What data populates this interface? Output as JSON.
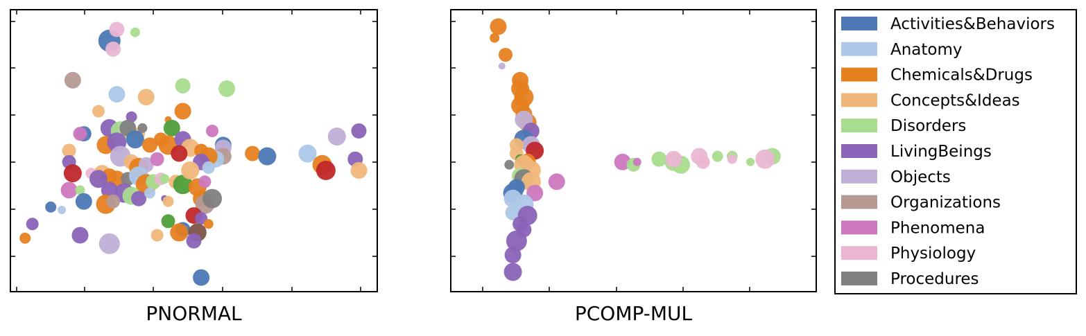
{
  "legend": {
    "placement": "right",
    "entries": [
      {
        "name": "Activities&Behaviors",
        "color": "#4c78b4"
      },
      {
        "name": "Anatomy",
        "color": "#aec7e8"
      },
      {
        "name": "Chemicals&Drugs",
        "color": "#e6801f"
      },
      {
        "name": "Concepts&Ideas",
        "color": "#f0b77a"
      },
      {
        "name": "Disorders",
        "color": "#a8dc8e"
      },
      {
        "name": "LivingBeings",
        "color": "#8a63b8"
      },
      {
        "name": "Objects",
        "color": "#c0afd6"
      },
      {
        "name": "Organizations",
        "color": "#b69a92"
      },
      {
        "name": "Phenomena",
        "color": "#cc78be"
      },
      {
        "name": "Physiology",
        "color": "#eab6d3"
      },
      {
        "name": "Procedures",
        "color": "#808080"
      }
    ]
  },
  "chart_data": [
    {
      "type": "scatter",
      "title": "PNORMAL",
      "xlabel": "",
      "ylabel": "",
      "xlim": [
        0,
        100
      ],
      "ylim": [
        0,
        100
      ],
      "grid": false,
      "tick_labels": "none",
      "extra_colors": {
        "green": "#4f9e3a",
        "red": "#c0282a",
        "brown": "#7d5449"
      },
      "points": [
        {
          "x": 27,
          "y": 89,
          "s": 16,
          "c": "Activities&Behaviors"
        },
        {
          "x": 29,
          "y": 93,
          "s": 11,
          "c": "Physiology"
        },
        {
          "x": 28,
          "y": 86,
          "s": 11,
          "c": "Physiology"
        },
        {
          "x": 34,
          "y": 92,
          "s": 7,
          "c": "Disorders"
        },
        {
          "x": 17,
          "y": 75,
          "s": 12,
          "c": "Organizations"
        },
        {
          "x": 47,
          "y": 73,
          "s": 11,
          "c": "Disorders"
        },
        {
          "x": 59,
          "y": 72,
          "s": 12,
          "c": "Disorders"
        },
        {
          "x": 29,
          "y": 70,
          "s": 12,
          "c": "Anatomy"
        },
        {
          "x": 37,
          "y": 69,
          "s": 12,
          "c": "Concepts&Ideas"
        },
        {
          "x": 24,
          "y": 64,
          "s": 9,
          "c": "Concepts&Ideas"
        },
        {
          "x": 47,
          "y": 64,
          "s": 12,
          "c": "Chemicals&Drugs"
        },
        {
          "x": 43,
          "y": 61,
          "s": 5,
          "c": "Chemicals&Drugs"
        },
        {
          "x": 33,
          "y": 62,
          "s": 8,
          "c": "LivingBeings"
        },
        {
          "x": 44,
          "y": 58,
          "s": 12,
          "c": "green"
        },
        {
          "x": 55,
          "y": 57,
          "s": 9,
          "c": "Phenomena"
        },
        {
          "x": 20,
          "y": 56,
          "s": 11,
          "c": "Activities&Behaviors"
        },
        {
          "x": 19,
          "y": 56,
          "s": 10,
          "c": "Phenomena"
        },
        {
          "x": 27,
          "y": 58,
          "s": 13,
          "c": "LivingBeings"
        },
        {
          "x": 30,
          "y": 57,
          "s": 14,
          "c": "Disorders"
        },
        {
          "x": 35,
          "y": 56,
          "s": 9,
          "c": "Concepts&Ideas"
        },
        {
          "x": 36,
          "y": 58,
          "s": 7,
          "c": "Procedures"
        },
        {
          "x": 32,
          "y": 58,
          "s": 12,
          "c": "Procedures"
        },
        {
          "x": 34,
          "y": 54,
          "s": 13,
          "c": "Activities&Behaviors"
        },
        {
          "x": 26,
          "y": 52,
          "s": 13,
          "c": "Chemicals&Drugs"
        },
        {
          "x": 29,
          "y": 53,
          "s": 14,
          "c": "LivingBeings"
        },
        {
          "x": 38,
          "y": 52,
          "s": 11,
          "c": "Chemicals&Drugs"
        },
        {
          "x": 41,
          "y": 54,
          "s": 10,
          "c": "Chemicals&Drugs"
        },
        {
          "x": 43,
          "y": 52,
          "s": 14,
          "c": "Chemicals&Drugs"
        },
        {
          "x": 47,
          "y": 54,
          "s": 12,
          "c": "LivingBeings"
        },
        {
          "x": 49,
          "y": 51,
          "s": 13,
          "c": "Concepts&Ideas"
        },
        {
          "x": 46,
          "y": 49,
          "s": 12,
          "c": "red"
        },
        {
          "x": 52,
          "y": 50,
          "s": 10,
          "c": "Chemicals&Drugs"
        },
        {
          "x": 58,
          "y": 52,
          "s": 12,
          "c": "Activities&Behaviors"
        },
        {
          "x": 58,
          "y": 51,
          "s": 12,
          "c": "Objects"
        },
        {
          "x": 58,
          "y": 48,
          "s": 12,
          "c": "Organizations"
        },
        {
          "x": 56,
          "y": 47,
          "s": 12,
          "c": "Anatomy"
        },
        {
          "x": 54,
          "y": 48,
          "s": 13,
          "c": "Chemicals&Drugs"
        },
        {
          "x": 52,
          "y": 46,
          "s": 12,
          "c": "LivingBeings"
        },
        {
          "x": 54,
          "y": 44,
          "s": 9,
          "c": "Anatomy"
        },
        {
          "x": 16,
          "y": 50,
          "s": 10,
          "c": "Concepts&Ideas"
        },
        {
          "x": 16,
          "y": 46,
          "s": 10,
          "c": "LivingBeings"
        },
        {
          "x": 30,
          "y": 48,
          "s": 15,
          "c": "Objects"
        },
        {
          "x": 33,
          "y": 46,
          "s": 11,
          "c": "Concepts&Ideas"
        },
        {
          "x": 35,
          "y": 44,
          "s": 14,
          "c": "Chemicals&Drugs"
        },
        {
          "x": 37,
          "y": 45,
          "s": 11,
          "c": "Objects"
        },
        {
          "x": 40,
          "y": 47,
          "s": 10,
          "c": "Phenomena"
        },
        {
          "x": 17,
          "y": 42,
          "s": 13,
          "c": "red"
        },
        {
          "x": 22,
          "y": 42,
          "s": 8,
          "c": "Physiology"
        },
        {
          "x": 25,
          "y": 42,
          "s": 12,
          "c": "Concepts&Ideas"
        },
        {
          "x": 27,
          "y": 41,
          "s": 11,
          "c": "Chemicals&Drugs"
        },
        {
          "x": 24,
          "y": 40,
          "s": 13,
          "c": "LivingBeings"
        },
        {
          "x": 29,
          "y": 40,
          "s": 12,
          "c": "Chemicals&Drugs"
        },
        {
          "x": 32,
          "y": 40,
          "s": 10,
          "c": "Procedures"
        },
        {
          "x": 35,
          "y": 41,
          "s": 14,
          "c": "Anatomy"
        },
        {
          "x": 37,
          "y": 38,
          "s": 15,
          "c": "Chemicals&Drugs"
        },
        {
          "x": 39,
          "y": 39,
          "s": 11,
          "c": "Disorders"
        },
        {
          "x": 41,
          "y": 40,
          "s": 9,
          "c": "Physiology"
        },
        {
          "x": 42,
          "y": 40,
          "s": 7,
          "c": "Disorders"
        },
        {
          "x": 45,
          "y": 39,
          "s": 10,
          "c": "Concepts&Ideas"
        },
        {
          "x": 47,
          "y": 38,
          "s": 14,
          "c": "green"
        },
        {
          "x": 49,
          "y": 43,
          "s": 13,
          "c": "Concepts&Ideas"
        },
        {
          "x": 51,
          "y": 37,
          "s": 13,
          "c": "Chemicals&Drugs"
        },
        {
          "x": 53,
          "y": 39,
          "s": 9,
          "c": "Phenomena"
        },
        {
          "x": 16,
          "y": 36,
          "s": 12,
          "c": "Phenomena"
        },
        {
          "x": 19,
          "y": 36,
          "s": 7,
          "c": "Disorders"
        },
        {
          "x": 27,
          "y": 36,
          "s": 12,
          "c": "LivingBeings"
        },
        {
          "x": 31,
          "y": 35,
          "s": 14,
          "c": "LivingBeings"
        },
        {
          "x": 33,
          "y": 34,
          "s": 13,
          "c": "Disorders"
        },
        {
          "x": 35,
          "y": 33,
          "s": 11,
          "c": "LivingBeings"
        },
        {
          "x": 38,
          "y": 35,
          "s": 8,
          "c": "Anatomy"
        },
        {
          "x": 42,
          "y": 33,
          "s": 5,
          "c": "LivingBeings"
        },
        {
          "x": 43,
          "y": 32,
          "s": 8,
          "c": "Concepts&Ideas"
        },
        {
          "x": 20,
          "y": 32,
          "s": 12,
          "c": "Activities&Behaviors"
        },
        {
          "x": 26,
          "y": 31,
          "s": 14,
          "c": "Chemicals&Drugs"
        },
        {
          "x": 28,
          "y": 32,
          "s": 10,
          "c": "Organizations"
        },
        {
          "x": 52,
          "y": 33,
          "s": 12,
          "c": "Chemicals&Drugs"
        },
        {
          "x": 53,
          "y": 31,
          "s": 14,
          "c": "Organizations"
        },
        {
          "x": 55,
          "y": 33,
          "s": 14,
          "c": "Procedures"
        },
        {
          "x": 50,
          "y": 27,
          "s": 12,
          "c": "red"
        },
        {
          "x": 52,
          "y": 26,
          "s": 9,
          "c": "LivingBeings"
        },
        {
          "x": 54,
          "y": 24,
          "s": 7,
          "c": "Chemicals&Drugs"
        },
        {
          "x": 11,
          "y": 30,
          "s": 8,
          "c": "Activities&Behaviors"
        },
        {
          "x": 14,
          "y": 29,
          "s": 6,
          "c": "Anatomy"
        },
        {
          "x": 6,
          "y": 24,
          "s": 9,
          "c": "LivingBeings"
        },
        {
          "x": 43,
          "y": 25,
          "s": 10,
          "c": "green"
        },
        {
          "x": 47,
          "y": 22,
          "s": 11,
          "c": "Activities&Behaviors"
        },
        {
          "x": 19,
          "y": 20,
          "s": 12,
          "c": "LivingBeings"
        },
        {
          "x": 4,
          "y": 19,
          "s": 8,
          "c": "Chemicals&Drugs"
        },
        {
          "x": 40,
          "y": 20,
          "s": 9,
          "c": "Concepts&Ideas"
        },
        {
          "x": 46,
          "y": 21,
          "s": 13,
          "c": "Chemicals&Drugs"
        },
        {
          "x": 51,
          "y": 21,
          "s": 13,
          "c": "brown"
        },
        {
          "x": 50,
          "y": 18,
          "s": 11,
          "c": "LivingBeings"
        },
        {
          "x": 27,
          "y": 17,
          "s": 15,
          "c": "Objects"
        },
        {
          "x": 52,
          "y": 5,
          "s": 12,
          "c": "Activities&Behaviors"
        },
        {
          "x": 66,
          "y": 49,
          "s": 11,
          "c": "Chemicals&Drugs"
        },
        {
          "x": 70,
          "y": 48,
          "s": 13,
          "c": "Activities&Behaviors"
        },
        {
          "x": 81,
          "y": 49,
          "s": 13,
          "c": "Anatomy"
        },
        {
          "x": 85,
          "y": 45,
          "s": 14,
          "c": "Chemicals&Drugs"
        },
        {
          "x": 86,
          "y": 43,
          "s": 14,
          "c": "red"
        },
        {
          "x": 89,
          "y": 55,
          "s": 13,
          "c": "Objects"
        },
        {
          "x": 95,
          "y": 57,
          "s": 11,
          "c": "LivingBeings"
        },
        {
          "x": 94,
          "y": 47,
          "s": 11,
          "c": "LivingBeings"
        },
        {
          "x": 95,
          "y": 43,
          "s": 12,
          "c": "Concepts&Ideas"
        }
      ]
    },
    {
      "type": "scatter",
      "title": "PCOMP-MUL",
      "xlabel": "",
      "ylabel": "",
      "xlim": [
        0,
        100
      ],
      "ylim": [
        0,
        100
      ],
      "grid": false,
      "tick_labels": "none",
      "extra_colors": {
        "green": "#4f9e3a",
        "red": "#c0282a",
        "brown": "#7d5449"
      },
      "points": [
        {
          "x": 13,
          "y": 94,
          "s": 12,
          "c": "Chemicals&Drugs"
        },
        {
          "x": 12,
          "y": 90,
          "s": 7,
          "c": "Chemicals&Drugs"
        },
        {
          "x": 15,
          "y": 84,
          "s": 10,
          "c": "Chemicals&Drugs"
        },
        {
          "x": 14,
          "y": 80,
          "s": 5,
          "c": "Objects"
        },
        {
          "x": 19,
          "y": 75,
          "s": 12,
          "c": "Chemicals&Drugs"
        },
        {
          "x": 19,
          "y": 72,
          "s": 13,
          "c": "Chemicals&Drugs"
        },
        {
          "x": 20,
          "y": 69,
          "s": 14,
          "c": "Chemicals&Drugs"
        },
        {
          "x": 19,
          "y": 66,
          "s": 13,
          "c": "Chemicals&Drugs"
        },
        {
          "x": 20,
          "y": 63,
          "s": 12,
          "c": "Chemicals&Drugs"
        },
        {
          "x": 21,
          "y": 60,
          "s": 13,
          "c": "Chemicals&Drugs"
        },
        {
          "x": 20,
          "y": 61,
          "s": 13,
          "c": "Objects"
        },
        {
          "x": 22,
          "y": 57,
          "s": 12,
          "c": "LivingBeings"
        },
        {
          "x": 20,
          "y": 54,
          "s": 14,
          "c": "Activities&Behaviors"
        },
        {
          "x": 22,
          "y": 52,
          "s": 13,
          "c": "Objects"
        },
        {
          "x": 18,
          "y": 52,
          "s": 10,
          "c": "Concepts&Ideas"
        },
        {
          "x": 23,
          "y": 50,
          "s": 13,
          "c": "red"
        },
        {
          "x": 18,
          "y": 49,
          "s": 10,
          "c": "Concepts&Ideas"
        },
        {
          "x": 19,
          "y": 47,
          "s": 7,
          "c": "green"
        },
        {
          "x": 16,
          "y": 45,
          "s": 7,
          "c": "Procedures"
        },
        {
          "x": 21,
          "y": 46,
          "s": 12,
          "c": "Chemicals&Drugs"
        },
        {
          "x": 20,
          "y": 45,
          "s": 14,
          "c": "Concepts&Ideas"
        },
        {
          "x": 22,
          "y": 43,
          "s": 14,
          "c": "Concepts&Ideas"
        },
        {
          "x": 19,
          "y": 41,
          "s": 12,
          "c": "Disorders"
        },
        {
          "x": 20,
          "y": 40,
          "s": 14,
          "c": "Procedures"
        },
        {
          "x": 22,
          "y": 39,
          "s": 14,
          "c": "Concepts&Ideas"
        },
        {
          "x": 29,
          "y": 39,
          "s": 12,
          "c": "Phenomena"
        },
        {
          "x": 18,
          "y": 37,
          "s": 12,
          "c": "Activities&Behaviors"
        },
        {
          "x": 23,
          "y": 35,
          "s": 12,
          "c": "Phenomena"
        },
        {
          "x": 17,
          "y": 35,
          "s": 14,
          "c": "Activities&Behaviors"
        },
        {
          "x": 17,
          "y": 33,
          "s": 13,
          "c": "Anatomy"
        },
        {
          "x": 20,
          "y": 31,
          "s": 14,
          "c": "Anatomy"
        },
        {
          "x": 17,
          "y": 28,
          "s": 11,
          "c": "Anatomy"
        },
        {
          "x": 21,
          "y": 27,
          "s": 14,
          "c": "LivingBeings"
        },
        {
          "x": 19,
          "y": 24,
          "s": 11,
          "c": "LivingBeings"
        },
        {
          "x": 20,
          "y": 22,
          "s": 11,
          "c": "LivingBeings"
        },
        {
          "x": 18,
          "y": 18,
          "s": 15,
          "c": "LivingBeings"
        },
        {
          "x": 17,
          "y": 13,
          "s": 12,
          "c": "LivingBeings"
        },
        {
          "x": 17,
          "y": 7,
          "s": 13,
          "c": "LivingBeings"
        },
        {
          "x": 47,
          "y": 46,
          "s": 12,
          "c": "Phenomena"
        },
        {
          "x": 50,
          "y": 45,
          "s": 10,
          "c": "Disorders"
        },
        {
          "x": 51,
          "y": 46,
          "s": 6,
          "c": "Phenomena"
        },
        {
          "x": 57,
          "y": 47,
          "s": 11,
          "c": "Disorders"
        },
        {
          "x": 61,
          "y": 46,
          "s": 13,
          "c": "Disorders"
        },
        {
          "x": 63,
          "y": 45,
          "s": 13,
          "c": "Disorders"
        },
        {
          "x": 61,
          "y": 47,
          "s": 12,
          "c": "Physiology"
        },
        {
          "x": 68,
          "y": 48,
          "s": 12,
          "c": "Physiology"
        },
        {
          "x": 69,
          "y": 46,
          "s": 10,
          "c": "Physiology"
        },
        {
          "x": 73,
          "y": 48,
          "s": 8,
          "c": "Disorders"
        },
        {
          "x": 77,
          "y": 48,
          "s": 8,
          "c": "Disorders"
        },
        {
          "x": 77,
          "y": 47,
          "s": 7,
          "c": "Physiology"
        },
        {
          "x": 82,
          "y": 46,
          "s": 6,
          "c": "Disorders"
        },
        {
          "x": 88,
          "y": 48,
          "s": 12,
          "c": "Disorders"
        },
        {
          "x": 86,
          "y": 47,
          "s": 14,
          "c": "Physiology"
        }
      ]
    }
  ]
}
